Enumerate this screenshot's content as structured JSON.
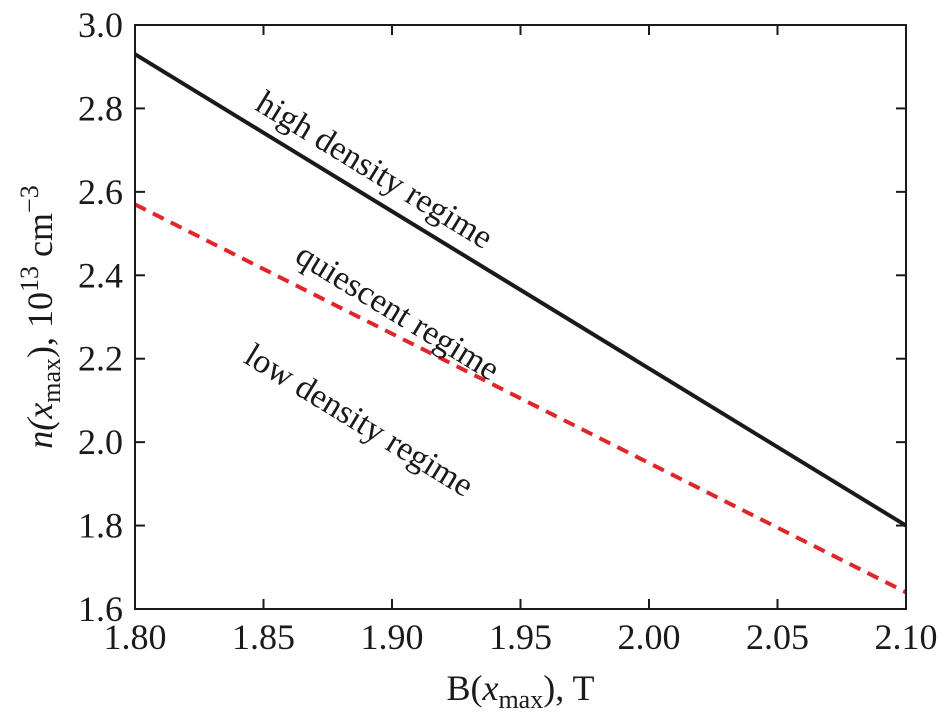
{
  "chart_data": {
    "type": "line",
    "xlim": [
      1.8,
      2.1
    ],
    "ylim": [
      1.6,
      3.0
    ],
    "x_ticks": [
      1.8,
      1.85,
      1.9,
      1.95,
      2.0,
      2.05,
      2.1
    ],
    "x_tick_labels": [
      "1.80",
      "1.85",
      "1.90",
      "1.95",
      "2.00",
      "2.05",
      "2.10"
    ],
    "y_ticks": [
      1.6,
      1.8,
      2.0,
      2.2,
      2.4,
      2.6,
      2.8,
      3.0
    ],
    "y_tick_labels": [
      "1.6",
      "1.8",
      "2.0",
      "2.2",
      "2.4",
      "2.6",
      "2.8",
      "3.0"
    ],
    "xlabel": {
      "main": "B(",
      "var": "x",
      "sub": "max",
      "tail": "), T"
    },
    "ylabel": {
      "main": "n(",
      "var": "x",
      "sub": "max",
      "tail": "), 10",
      "sup1": "13",
      "mid": " cm",
      "sup2": "−3"
    },
    "grid": false,
    "series": [
      {
        "x": [
          1.8,
          2.1
        ],
        "y": [
          2.93,
          1.8
        ],
        "color": "#1a1a1a",
        "style": "solid"
      },
      {
        "x": [
          1.8,
          2.1
        ],
        "y": [
          2.57,
          1.64
        ],
        "color": "#e0262a",
        "style": "dashed"
      }
    ],
    "annotations": [
      {
        "text": "high density regime",
        "x": 1.891,
        "y": 2.63
      },
      {
        "text": "quiescent regime",
        "x": 1.9,
        "y": 2.29
      },
      {
        "text": "low density regime",
        "x": 1.885,
        "y": 2.03
      }
    ]
  }
}
